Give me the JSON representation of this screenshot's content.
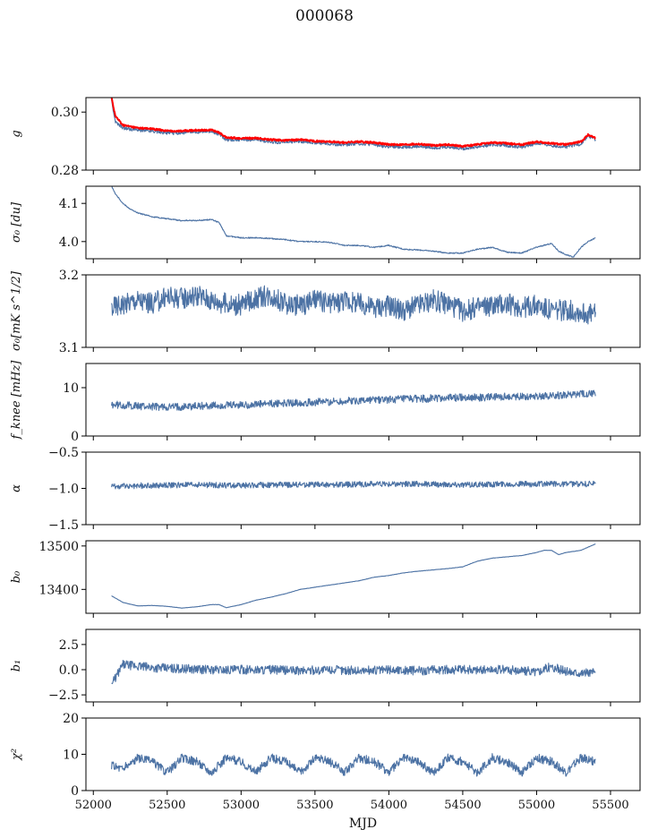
{
  "figure": {
    "title": "000068",
    "xlabel": "MJD"
  },
  "colors": {
    "series": "#4c72a4",
    "overlay": "#ff0000",
    "axes": "#000000"
  },
  "chart_data": [
    {
      "type": "line",
      "ylabel": "g",
      "ylim": [
        0.28,
        0.305
      ],
      "yticks": [
        "0.28",
        "0.30"
      ],
      "xlim": [
        51950,
        55700
      ],
      "grid": false,
      "series": [
        {
          "color": "#4c72a4",
          "x": [
            52123,
            52150,
            52200,
            52300,
            52400,
            52500,
            52600,
            52700,
            52800,
            52850,
            52900,
            53000,
            53100,
            53200,
            53300,
            53400,
            53500,
            53600,
            53700,
            53800,
            53900,
            54000,
            54100,
            54200,
            54300,
            54400,
            54500,
            54600,
            54700,
            54800,
            54900,
            55000,
            55100,
            55200,
            55300,
            55350,
            55400
          ],
          "y": [
            0.304,
            0.2965,
            0.2945,
            0.2938,
            0.2935,
            0.2928,
            0.2928,
            0.2932,
            0.2932,
            0.2925,
            0.2905,
            0.2905,
            0.2905,
            0.2898,
            0.2895,
            0.29,
            0.2895,
            0.289,
            0.2888,
            0.2892,
            0.2888,
            0.288,
            0.288,
            0.2882,
            0.2878,
            0.288,
            0.2875,
            0.288,
            0.2888,
            0.2885,
            0.288,
            0.2892,
            0.2885,
            0.288,
            0.289,
            0.2918,
            0.2905
          ]
        },
        {
          "color": "#ff0000",
          "x": [
            52123,
            52150,
            52200,
            52300,
            52400,
            52500,
            52600,
            52700,
            52800,
            52850,
            52900,
            53000,
            53100,
            53200,
            53300,
            53400,
            53500,
            53600,
            53700,
            53800,
            53900,
            54000,
            54100,
            54200,
            54300,
            54400,
            54500,
            54600,
            54700,
            54800,
            54900,
            55000,
            55100,
            55200,
            55300,
            55350,
            55400
          ],
          "y": [
            0.305,
            0.2985,
            0.2955,
            0.2945,
            0.2942,
            0.2935,
            0.2935,
            0.2938,
            0.2938,
            0.293,
            0.2912,
            0.291,
            0.291,
            0.2905,
            0.2902,
            0.2905,
            0.29,
            0.2898,
            0.2895,
            0.2898,
            0.2895,
            0.2888,
            0.2888,
            0.289,
            0.2885,
            0.2888,
            0.2882,
            0.2888,
            0.2895,
            0.2892,
            0.2888,
            0.2898,
            0.2892,
            0.2888,
            0.2898,
            0.2922,
            0.291
          ]
        }
      ]
    },
    {
      "type": "line",
      "ylabel": "σ₀ [du]",
      "ylim": [
        3.955,
        4.145
      ],
      "yticks": [
        "4.0",
        "4.1"
      ],
      "xlim": [
        51950,
        55700
      ],
      "grid": false,
      "series": [
        {
          "color": "#4c72a4",
          "x": [
            52123,
            52150,
            52200,
            52250,
            52300,
            52400,
            52500,
            52600,
            52700,
            52800,
            52850,
            52900,
            53000,
            53100,
            53200,
            53300,
            53400,
            53500,
            53600,
            53700,
            53800,
            53900,
            54000,
            54100,
            54200,
            54300,
            54400,
            54500,
            54600,
            54700,
            54800,
            54900,
            55000,
            55100,
            55150,
            55200,
            55250,
            55300,
            55350,
            55400
          ],
          "y": [
            4.145,
            4.125,
            4.1,
            4.085,
            4.075,
            4.065,
            4.06,
            4.055,
            4.055,
            4.058,
            4.05,
            4.015,
            4.01,
            4.01,
            4.008,
            4.005,
            4.0,
            4.0,
            3.998,
            3.99,
            3.99,
            3.985,
            3.99,
            3.98,
            3.978,
            3.975,
            3.97,
            3.97,
            3.98,
            3.985,
            3.972,
            3.97,
            3.985,
            3.995,
            3.975,
            3.965,
            3.96,
            3.985,
            4.0,
            4.01
          ]
        }
      ]
    },
    {
      "type": "line",
      "ylabel": "σ₀[mK s^1/2]",
      "ylim": [
        3.1,
        3.2
      ],
      "yticks": [
        "3.1",
        "3.2"
      ],
      "xlim": [
        51950,
        55700
      ],
      "grid": false,
      "series": [
        {
          "color": "#4c72a4",
          "x": [
            52123,
            52200,
            52300,
            52400,
            52500,
            52600,
            52700,
            52800,
            52900,
            53000,
            53100,
            53200,
            53300,
            53400,
            53500,
            53600,
            53700,
            53800,
            53900,
            54000,
            54100,
            54200,
            54300,
            54400,
            54500,
            54600,
            54700,
            54800,
            54900,
            55000,
            55100,
            55200,
            55300,
            55400
          ],
          "y": [
            3.155,
            3.16,
            3.165,
            3.16,
            3.17,
            3.168,
            3.172,
            3.165,
            3.16,
            3.158,
            3.168,
            3.172,
            3.16,
            3.158,
            3.165,
            3.16,
            3.165,
            3.16,
            3.155,
            3.158,
            3.15,
            3.158,
            3.165,
            3.16,
            3.15,
            3.155,
            3.158,
            3.16,
            3.155,
            3.158,
            3.15,
            3.152,
            3.148,
            3.145
          ]
        }
      ]
    },
    {
      "type": "line",
      "ylabel": "f_knee [mHz]",
      "ylim": [
        0,
        15
      ],
      "yticks": [
        "0",
        "10"
      ],
      "xlim": [
        51950,
        55700
      ],
      "grid": false,
      "series": [
        {
          "color": "#4c72a4",
          "x": [
            52123,
            52300,
            52500,
            52700,
            52900,
            53100,
            53300,
            53500,
            53700,
            53900,
            54100,
            54300,
            54500,
            54700,
            54900,
            55100,
            55300,
            55400
          ],
          "y": [
            6.5,
            6.2,
            6.0,
            6.2,
            6.3,
            6.5,
            6.8,
            7.0,
            7.2,
            7.5,
            7.6,
            7.8,
            8.0,
            8.0,
            8.2,
            8.4,
            8.6,
            8.8
          ]
        }
      ]
    },
    {
      "type": "line",
      "ylabel": "α",
      "ylim": [
        -1.5,
        -0.5
      ],
      "yticks": [
        "−1.5",
        "−1.0",
        "−0.5"
      ],
      "xlim": [
        51950,
        55700
      ],
      "grid": false,
      "series": [
        {
          "color": "#4c72a4",
          "x": [
            52123,
            52400,
            52700,
            53000,
            53300,
            53600,
            53900,
            54200,
            54500,
            54800,
            55100,
            55400
          ],
          "y": [
            -0.97,
            -0.96,
            -0.95,
            -0.96,
            -0.95,
            -0.95,
            -0.94,
            -0.94,
            -0.95,
            -0.94,
            -0.94,
            -0.94
          ]
        }
      ]
    },
    {
      "type": "line",
      "ylabel": "b₀",
      "ylim": [
        13345,
        13512
      ],
      "yticks": [
        "13400",
        "13500"
      ],
      "xlim": [
        51950,
        55700
      ],
      "grid": false,
      "series": [
        {
          "color": "#4c72a4",
          "x": [
            52123,
            52150,
            52200,
            52300,
            52400,
            52500,
            52600,
            52700,
            52800,
            52850,
            52900,
            53000,
            53100,
            53200,
            53300,
            53400,
            53500,
            53600,
            53700,
            53800,
            53900,
            54000,
            54100,
            54200,
            54300,
            54400,
            54500,
            54600,
            54700,
            54800,
            54900,
            55000,
            55050,
            55100,
            55150,
            55200,
            55300,
            55400
          ],
          "y": [
            13385,
            13380,
            13370,
            13362,
            13363,
            13361,
            13357,
            13360,
            13365,
            13365,
            13358,
            13365,
            13375,
            13382,
            13390,
            13400,
            13405,
            13410,
            13415,
            13420,
            13428,
            13432,
            13438,
            13442,
            13445,
            13448,
            13452,
            13465,
            13472,
            13475,
            13478,
            13485,
            13490,
            13490,
            13480,
            13485,
            13490,
            13505
          ]
        }
      ]
    },
    {
      "type": "line",
      "ylabel": "b₁",
      "ylim": [
        -3.2,
        4.0
      ],
      "yticks": [
        "−2.5",
        "0.0",
        "2.5"
      ],
      "xlim": [
        51950,
        55700
      ],
      "grid": false,
      "series": [
        {
          "color": "#4c72a4",
          "x": [
            52123,
            52200,
            52400,
            52600,
            52800,
            53000,
            53200,
            53400,
            53600,
            53800,
            54000,
            54200,
            54400,
            54600,
            54800,
            55000,
            55100,
            55200,
            55300,
            55400
          ],
          "y": [
            -1.5,
            0.5,
            0.2,
            0.1,
            0.0,
            0.0,
            0.0,
            -0.1,
            0.0,
            -0.1,
            0.0,
            -0.1,
            0.0,
            0.0,
            0.0,
            -0.2,
            0.3,
            -0.2,
            -0.3,
            -0.3
          ]
        }
      ]
    },
    {
      "type": "line",
      "ylabel": "χ²",
      "ylim": [
        0,
        20
      ],
      "yticks": [
        "0",
        "10",
        "20"
      ],
      "xlim": [
        51950,
        55700
      ],
      "xticks": [
        "52000",
        "52500",
        "53000",
        "53500",
        "54000",
        "54500",
        "55000",
        "55500"
      ],
      "grid": false,
      "series": [
        {
          "color": "#4c72a4",
          "x": [
            52123,
            52200,
            52300,
            52400,
            52500,
            52600,
            52700,
            52800,
            52900,
            53000,
            53100,
            53200,
            53300,
            53400,
            53500,
            53600,
            53700,
            53800,
            53900,
            54000,
            54100,
            54200,
            54300,
            54400,
            54500,
            54600,
            54700,
            54800,
            54900,
            55000,
            55100,
            55200,
            55300,
            55400
          ],
          "y": [
            7,
            6,
            9,
            8,
            5,
            9,
            8,
            5,
            9,
            8,
            5,
            9,
            8,
            5,
            9,
            8,
            5,
            9,
            8,
            5,
            9,
            8,
            5,
            9,
            8,
            5,
            9,
            8,
            5,
            9,
            8,
            5,
            9,
            8
          ]
        }
      ]
    }
  ]
}
